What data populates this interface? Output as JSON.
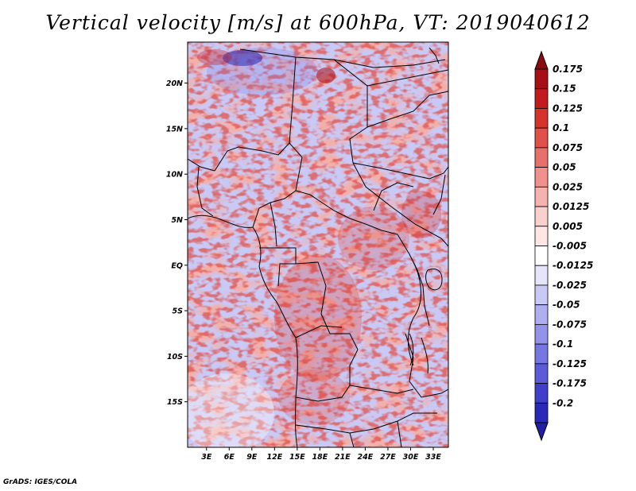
{
  "map": {
    "title": "Vertical velocity [m/s] at 600hPa, VT: 2019040612",
    "credit": "GrADS: IGES/COLA",
    "lat_labels": [
      {
        "lat": 20,
        "text": "20N"
      },
      {
        "lat": 15,
        "text": "15N"
      },
      {
        "lat": 10,
        "text": "10N"
      },
      {
        "lat": 5,
        "text": "5N"
      },
      {
        "lat": 0,
        "text": "EQ"
      },
      {
        "lat": -5,
        "text": "5S"
      },
      {
        "lat": -10,
        "text": "10S"
      },
      {
        "lat": -15,
        "text": "15S"
      }
    ],
    "lon_labels": [
      {
        "lon": 3,
        "text": "3E"
      },
      {
        "lon": 6,
        "text": "6E"
      },
      {
        "lon": 9,
        "text": "9E"
      },
      {
        "lon": 12,
        "text": "12E"
      },
      {
        "lon": 15,
        "text": "15E"
      },
      {
        "lon": 18,
        "text": "18E"
      },
      {
        "lon": 21,
        "text": "21E"
      },
      {
        "lon": 24,
        "text": "24E"
      },
      {
        "lon": 27,
        "text": "27E"
      },
      {
        "lon": 30,
        "text": "30E"
      },
      {
        "lon": 33,
        "text": "33E"
      }
    ],
    "extent": {
      "lon_min": 0.5,
      "lon_max": 35.0,
      "lat_min": -20.0,
      "lat_max": 24.5
    }
  },
  "colorbar": {
    "levels": [
      {
        "label": "0.175",
        "color": "#a50f15"
      },
      {
        "label": "0.15",
        "color": "#c21a1f"
      },
      {
        "label": "0.125",
        "color": "#d6342b"
      },
      {
        "label": "0.1",
        "color": "#e0514a"
      },
      {
        "label": "0.075",
        "color": "#e8706a"
      },
      {
        "label": "0.05",
        "color": "#f0918c"
      },
      {
        "label": "0.025",
        "color": "#f6b3ae"
      },
      {
        "label": "0.0125",
        "color": "#fad0cc"
      },
      {
        "label": "0.005",
        "color": "#fde6e4"
      },
      {
        "label": "-0.005",
        "color": "#ffffff"
      },
      {
        "label": "-0.0125",
        "color": "#e4e4fb"
      },
      {
        "label": "-0.025",
        "color": "#c9c9f6"
      },
      {
        "label": "-0.05",
        "color": "#aeaef0"
      },
      {
        "label": "-0.075",
        "color": "#9393ea"
      },
      {
        "label": "-0.1",
        "color": "#7777e2"
      },
      {
        "label": "-0.125",
        "color": "#5c5cd8"
      },
      {
        "label": "-0.175",
        "color": "#3f3fcc"
      },
      {
        "label": "-0.2",
        "color": "#2a2ab8"
      }
    ],
    "top_color": "#8b0a10",
    "bottom_color": "#2020a0"
  }
}
